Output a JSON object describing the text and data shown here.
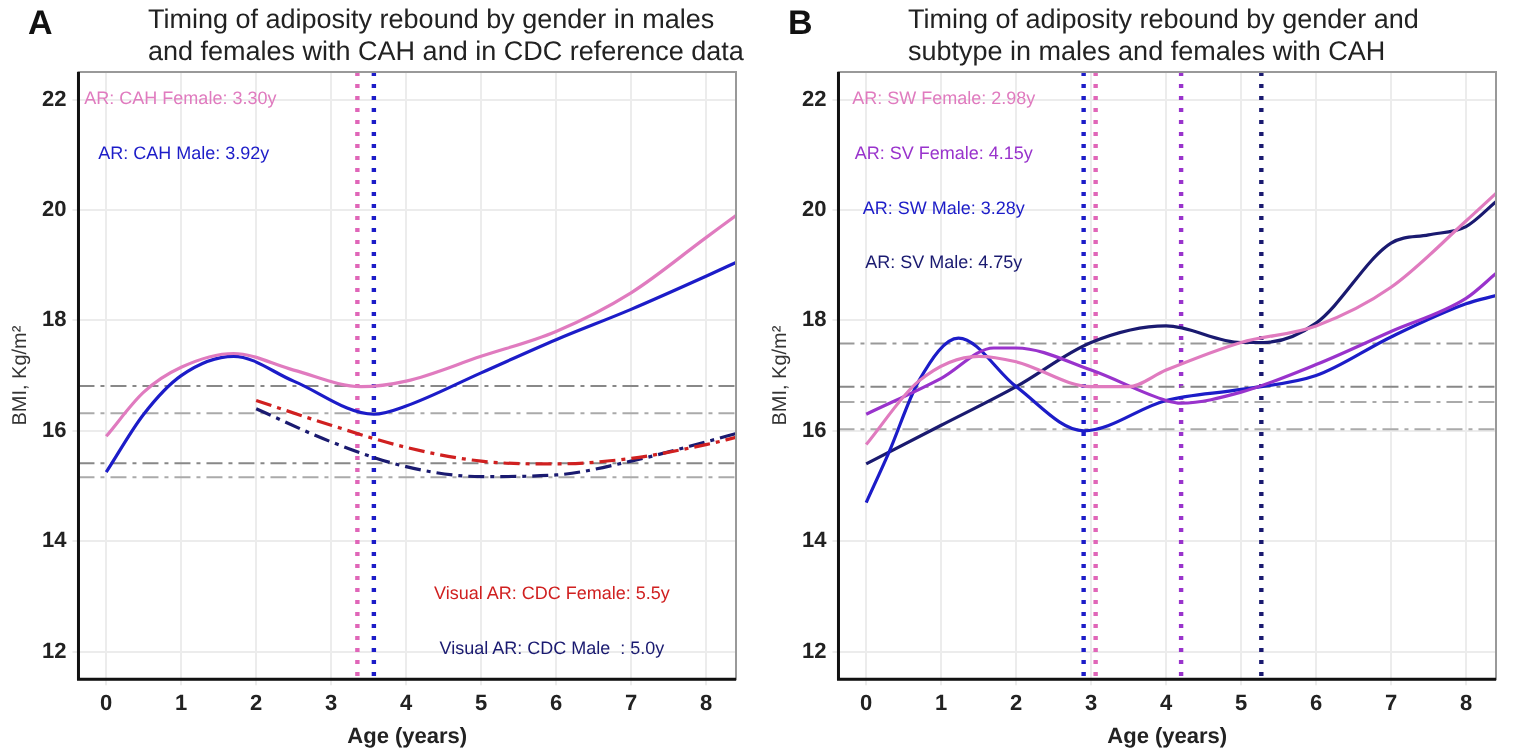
{
  "chart_data": [
    {
      "type": "line",
      "title": "Timing of adiposity rebound by gender in males and females with CAH and in CDC reference data",
      "xlabel": "Age (years)",
      "ylabel": "BMI, Kg/m²",
      "xlim": [
        -0.37,
        8.4
      ],
      "xticks": [
        0,
        1,
        2,
        3,
        4,
        5,
        6,
        7,
        8
      ],
      "ylim": [
        11.5,
        22.5
      ],
      "yticks": [
        12,
        14,
        16,
        18,
        20,
        22
      ],
      "grid": true,
      "legend": false,
      "annotations": [
        "A",
        "AR: CAH Female: 3.30y",
        "AR: CAH Male: 3.92y",
        "Visual AR: CDC Female: 5.5y",
        "Visual AR: CDC Male  : 5.0y"
      ],
      "ref_lines": [
        {
          "axis": "x",
          "value": 3.35,
          "color": "#e066b8",
          "line_style": "dotted"
        },
        {
          "axis": "x",
          "value": 3.57,
          "color": "#1c1cc8",
          "line_style": "dotted"
        },
        {
          "axis": "y",
          "value": 16.81,
          "color": "#888888",
          "line_style": "dashed"
        },
        {
          "axis": "y",
          "value": 16.32,
          "color": "#aaaaaa",
          "line_style": "dashed"
        },
        {
          "axis": "y",
          "value": 15.41,
          "color": "#888888",
          "line_style": "dashed"
        },
        {
          "axis": "y",
          "value": 15.16,
          "color": "#aaaaaa",
          "line_style": "dashed"
        }
      ],
      "series": [
        {
          "color": "#e07bbf",
          "line_style": "solid",
          "x": [
            0,
            0.5,
            1,
            1.7,
            2.5,
            3.4,
            4,
            5,
            6,
            7,
            8,
            8.4
          ],
          "values": [
            15.9,
            16.7,
            17.15,
            17.4,
            17.1,
            16.8,
            16.9,
            17.35,
            17.8,
            18.5,
            19.5,
            19.9
          ]
        },
        {
          "color": "#1c1cc8",
          "line_style": "solid",
          "x": [
            0,
            0.5,
            1,
            1.7,
            2.5,
            3.57,
            4,
            5,
            6,
            7,
            8,
            8.4
          ],
          "values": [
            15.25,
            16.3,
            17.0,
            17.35,
            16.9,
            16.3,
            16.45,
            17.05,
            17.65,
            18.2,
            18.8,
            19.05
          ]
        },
        {
          "color": "#d02020",
          "line_style": "dashed",
          "x": [
            2,
            3,
            4,
            5,
            6,
            7,
            8,
            8.4
          ],
          "values": [
            16.55,
            16.1,
            15.7,
            15.45,
            15.4,
            15.5,
            15.75,
            15.88
          ]
        },
        {
          "color": "#1a1a70",
          "line_style": "dashed",
          "x": [
            2,
            3,
            4,
            5,
            6,
            7,
            8,
            8.4
          ],
          "values": [
            16.4,
            15.8,
            15.35,
            15.17,
            15.2,
            15.45,
            15.8,
            15.95
          ]
        }
      ]
    },
    {
      "type": "line",
      "title": "Timing of adiposity rebound by gender and subtype in males and females with CAH",
      "xlabel": "Age (years)",
      "ylabel": "BMI, Kg/m²",
      "xlim": [
        -0.37,
        8.4
      ],
      "xticks": [
        0,
        1,
        2,
        3,
        4,
        5,
        6,
        7,
        8
      ],
      "ylim": [
        11.5,
        22.5
      ],
      "yticks": [
        12,
        14,
        16,
        18,
        20,
        22
      ],
      "grid": true,
      "legend": false,
      "annotations": [
        "B",
        "AR: SW Female: 2.98y",
        "AR: SV Female: 4.15y",
        "AR: SW Male: 3.28y",
        "AR: SV Male: 4.75y"
      ],
      "ref_lines": [
        {
          "axis": "x",
          "value": 2.9,
          "color": "#1c1cc8",
          "line_style": "dotted"
        },
        {
          "axis": "x",
          "value": 3.06,
          "color": "#e066b8",
          "line_style": "dotted"
        },
        {
          "axis": "x",
          "value": 4.2,
          "color": "#9933cc",
          "line_style": "dotted"
        },
        {
          "axis": "x",
          "value": 5.27,
          "color": "#1a1a70",
          "line_style": "dotted"
        },
        {
          "axis": "y",
          "value": 17.58,
          "color": "#999999",
          "line_style": "dashed"
        },
        {
          "axis": "y",
          "value": 16.8,
          "color": "#888888",
          "line_style": "dashed"
        },
        {
          "axis": "y",
          "value": 16.52,
          "color": "#aaaaaa",
          "line_style": "dashed"
        },
        {
          "axis": "y",
          "value": 16.03,
          "color": "#aaaaaa",
          "line_style": "dashed"
        }
      ],
      "series": [
        {
          "color": "#e07bbf",
          "line_style": "solid",
          "x": [
            0,
            0.7,
            1.5,
            2,
            3,
            3.5,
            4,
            5,
            6,
            7,
            8,
            8.4
          ],
          "values": [
            15.75,
            16.9,
            17.35,
            17.25,
            16.8,
            16.8,
            17.1,
            17.6,
            17.9,
            18.6,
            19.8,
            20.3
          ]
        },
        {
          "color": "#9933cc",
          "line_style": "solid",
          "x": [
            0,
            1,
            1.7,
            2,
            3,
            4,
            4.2,
            5,
            6,
            7,
            8,
            8.4
          ],
          "values": [
            16.3,
            16.95,
            17.5,
            17.5,
            17.1,
            16.55,
            16.5,
            16.7,
            17.2,
            17.8,
            18.4,
            18.85
          ]
        },
        {
          "color": "#1c1cc8",
          "line_style": "solid",
          "x": [
            0,
            0.3,
            0.7,
            1.23,
            2,
            2.9,
            4,
            5,
            6,
            7,
            8,
            8.4
          ],
          "values": [
            14.7,
            15.6,
            16.9,
            17.68,
            16.8,
            16.0,
            16.55,
            16.75,
            17.0,
            17.7,
            18.3,
            18.45
          ]
        },
        {
          "color": "#1a1a70",
          "line_style": "solid",
          "x": [
            0,
            1,
            2,
            3,
            4,
            5,
            5.3,
            6,
            7,
            7.5,
            8,
            8.4
          ],
          "values": [
            15.4,
            16.1,
            16.8,
            17.6,
            17.9,
            17.6,
            17.6,
            17.95,
            19.4,
            19.55,
            19.7,
            20.15
          ]
        }
      ]
    }
  ]
}
